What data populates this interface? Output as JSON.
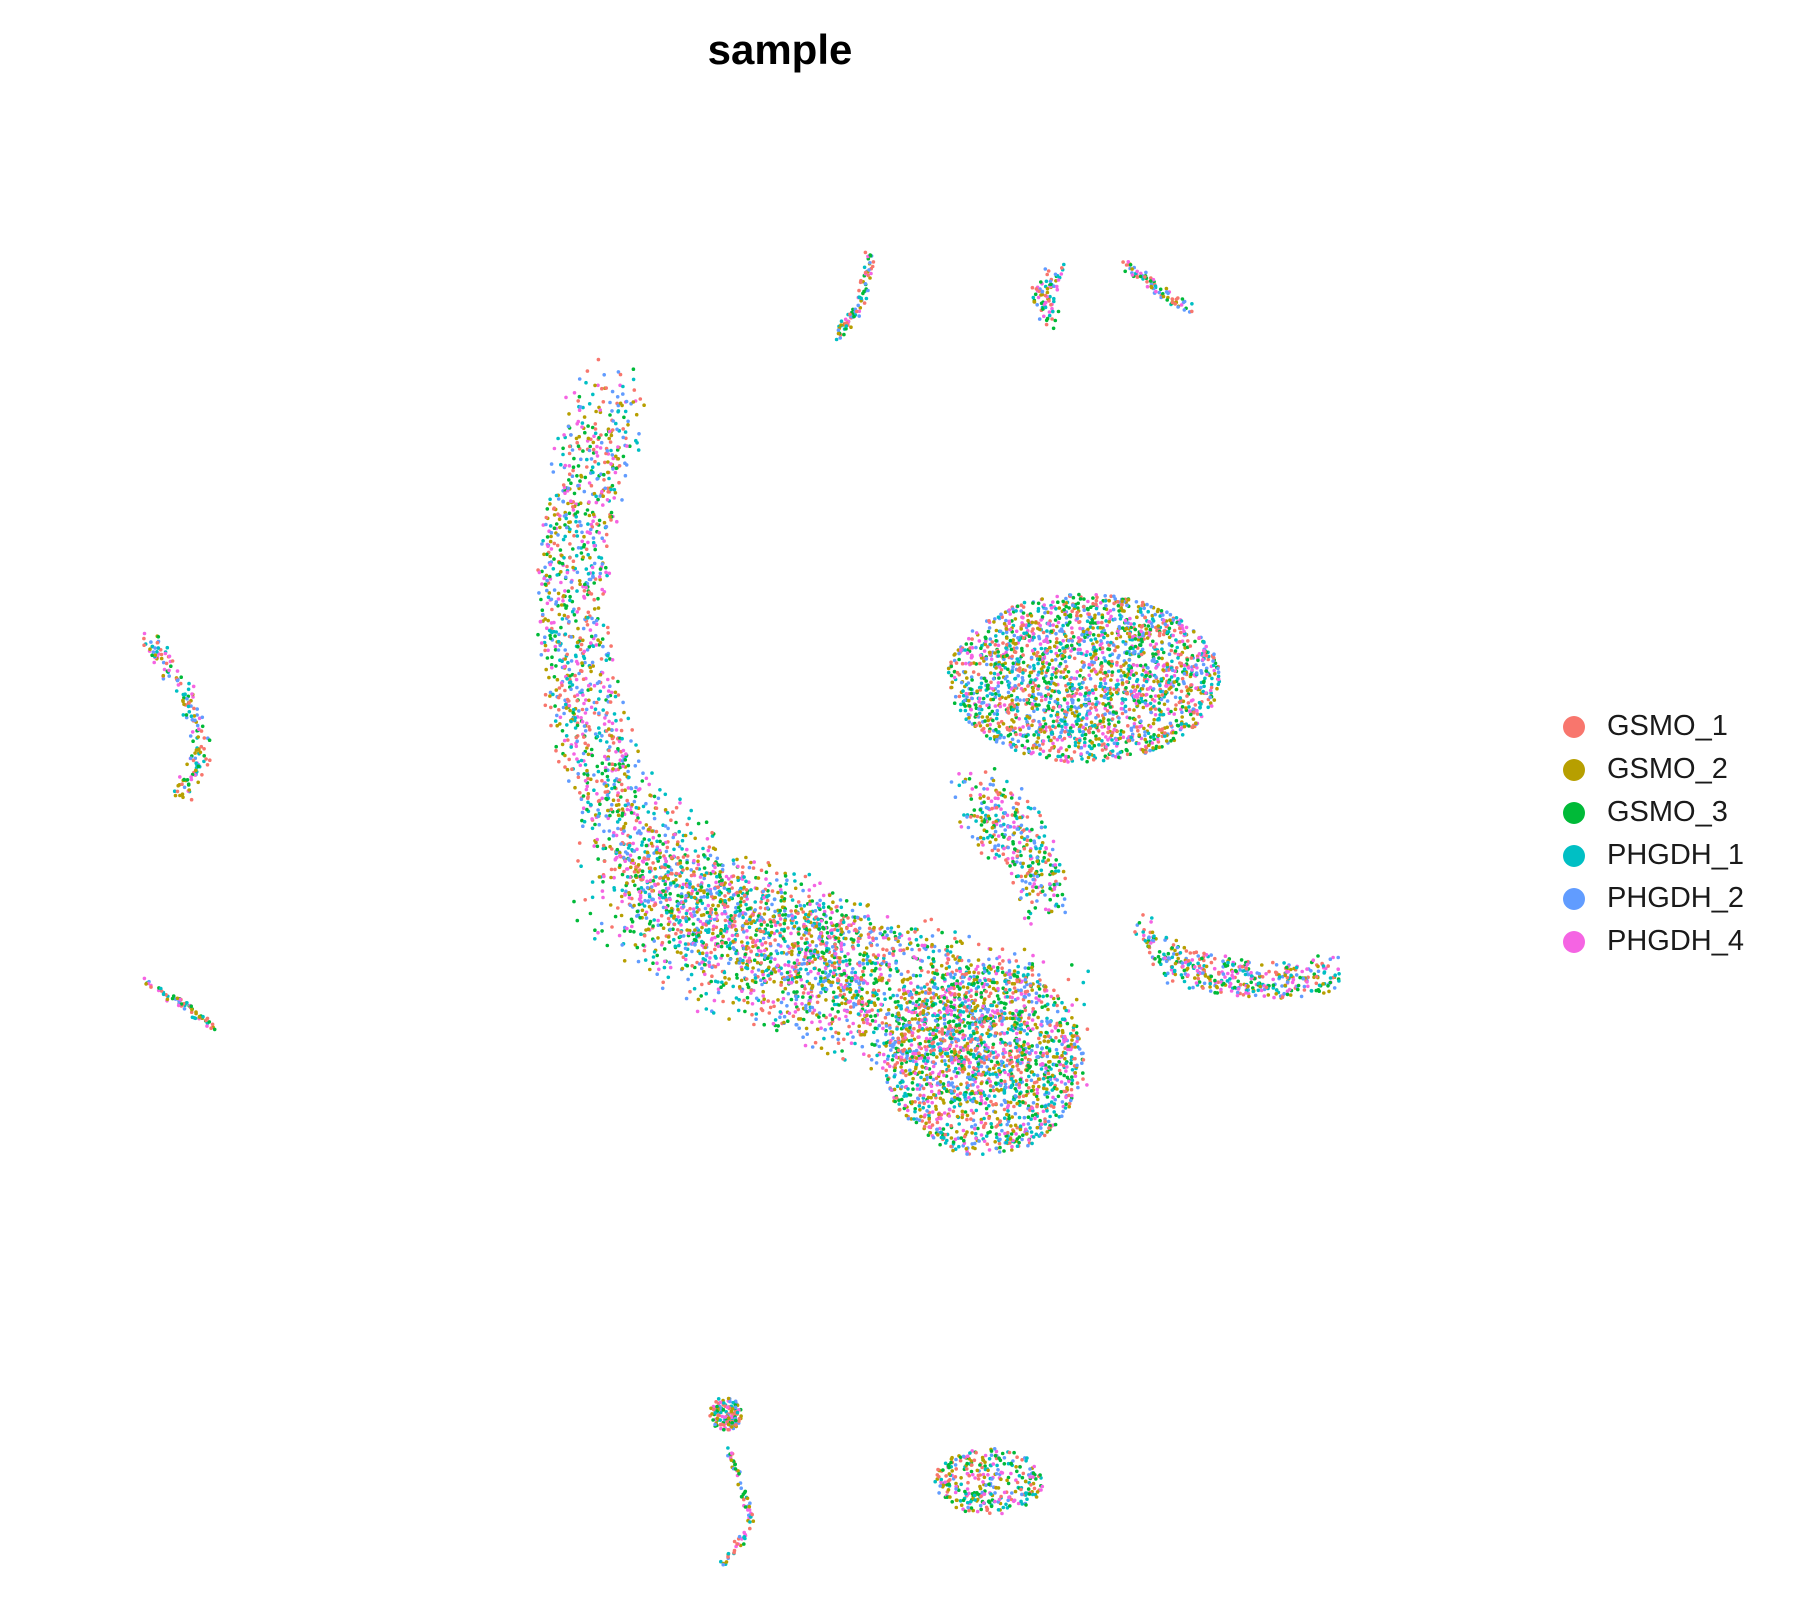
{
  "chart_data": {
    "type": "scatter",
    "title": "sample",
    "xlabel": "",
    "ylabel": "",
    "grid": false,
    "axes": false,
    "legend_position": "right",
    "xlim": [
      -15,
      15
    ],
    "ylim": [
      -13,
      13
    ],
    "series": [
      {
        "name": "GSMO_1",
        "color": "#F8766D"
      },
      {
        "name": "GSMO_2",
        "color": "#B79F00"
      },
      {
        "name": "GSMO_3",
        "color": "#00BA38"
      },
      {
        "name": "PHGDH_1",
        "color": "#00BFC4"
      },
      {
        "name": "PHGDH_2",
        "color": "#619CFF"
      },
      {
        "name": "PHGDH_4",
        "color": "#F564E3"
      }
    ],
    "clusters": [
      {
        "name": "main-arc",
        "shape": "path",
        "path": [
          [
            -3.7,
            7.7
          ],
          [
            -4.1,
            6.8
          ],
          [
            -4.5,
            5.5
          ],
          [
            -4.6,
            4.0
          ],
          [
            -4.4,
            2.7
          ],
          [
            -4.1,
            1.5
          ],
          [
            -3.5,
            0.3
          ],
          [
            -2.8,
            -0.7
          ],
          [
            -1.8,
            -1.4
          ],
          [
            -0.5,
            -1.9
          ],
          [
            1.0,
            -2.2
          ],
          [
            2.2,
            -2.6
          ]
        ],
        "spread": 0.75,
        "count": 1800
      },
      {
        "name": "main-band",
        "shape": "path",
        "path": [
          [
            -3.4,
            -0.5
          ],
          [
            -2.0,
            -1.5
          ],
          [
            -0.3,
            -2.1
          ],
          [
            1.2,
            -2.5
          ],
          [
            2.6,
            -2.9
          ],
          [
            4.0,
            -3.3
          ],
          [
            5.6,
            -3.6
          ]
        ],
        "spread": 1.25,
        "count": 2000
      },
      {
        "name": "main-lower",
        "shape": "ellipse",
        "center": [
          4.5,
          -4.1
        ],
        "radius": [
          2.2,
          1.7
        ],
        "count": 1500
      },
      {
        "name": "upper-blob",
        "shape": "ellipse",
        "center": [
          6.7,
          2.7
        ],
        "radius": [
          3.0,
          1.5
        ],
        "count": 2200
      },
      {
        "name": "neck",
        "shape": "path",
        "path": [
          [
            4.3,
            0.6
          ],
          [
            5.0,
            0.1
          ],
          [
            5.6,
            -0.5
          ],
          [
            5.9,
            -1.2
          ]
        ],
        "spread": 0.55,
        "count": 350
      },
      {
        "name": "right-protrusion",
        "shape": "path",
        "path": [
          [
            8.1,
            -1.8
          ],
          [
            8.7,
            -2.4
          ],
          [
            9.8,
            -2.6
          ],
          [
            11.2,
            -2.7
          ],
          [
            12.2,
            -2.5
          ]
        ],
        "spread": 0.32,
        "count": 420
      },
      {
        "name": "left-cluster-a",
        "shape": "path",
        "path": [
          [
            -13.9,
            3.4
          ],
          [
            -13.1,
            2.4
          ],
          [
            -12.7,
            1.5
          ],
          [
            -13.2,
            0.6
          ]
        ],
        "spread": 0.18,
        "count": 170
      },
      {
        "name": "left-cluster-b",
        "shape": "path",
        "path": [
          [
            -14.0,
            -2.7
          ],
          [
            -13.0,
            -3.2
          ],
          [
            -12.4,
            -3.6
          ]
        ],
        "spread": 0.07,
        "count": 70
      },
      {
        "name": "top-cluster-a",
        "shape": "path",
        "path": [
          [
            2.0,
            10.3
          ],
          [
            1.8,
            9.4
          ],
          [
            1.3,
            8.8
          ]
        ],
        "spread": 0.1,
        "count": 85
      },
      {
        "name": "top-cluster-b",
        "shape": "path",
        "path": [
          [
            6.1,
            9.9
          ],
          [
            5.7,
            9.5
          ],
          [
            6.0,
            9.1
          ]
        ],
        "spread": 0.2,
        "count": 80
      },
      {
        "name": "top-cluster-c",
        "shape": "path",
        "path": [
          [
            7.6,
            10.1
          ],
          [
            8.4,
            9.6
          ],
          [
            9.0,
            9.3
          ]
        ],
        "spread": 0.1,
        "count": 75
      },
      {
        "name": "bottom-cluster-a",
        "shape": "ellipse",
        "center": [
          -1.2,
          -10.4
        ],
        "radius": [
          0.35,
          0.3
        ],
        "count": 130
      },
      {
        "name": "bottom-cluster-b",
        "shape": "path",
        "path": [
          [
            -1.2,
            -10.9
          ],
          [
            -0.8,
            -11.8
          ],
          [
            -0.6,
            -12.4
          ],
          [
            -1.3,
            -13.1
          ]
        ],
        "spread": 0.07,
        "count": 80
      },
      {
        "name": "bottom-cluster-c",
        "shape": "ellipse",
        "center": [
          4.6,
          -11.6
        ],
        "radius": [
          1.2,
          0.6
        ],
        "count": 320
      }
    ]
  }
}
